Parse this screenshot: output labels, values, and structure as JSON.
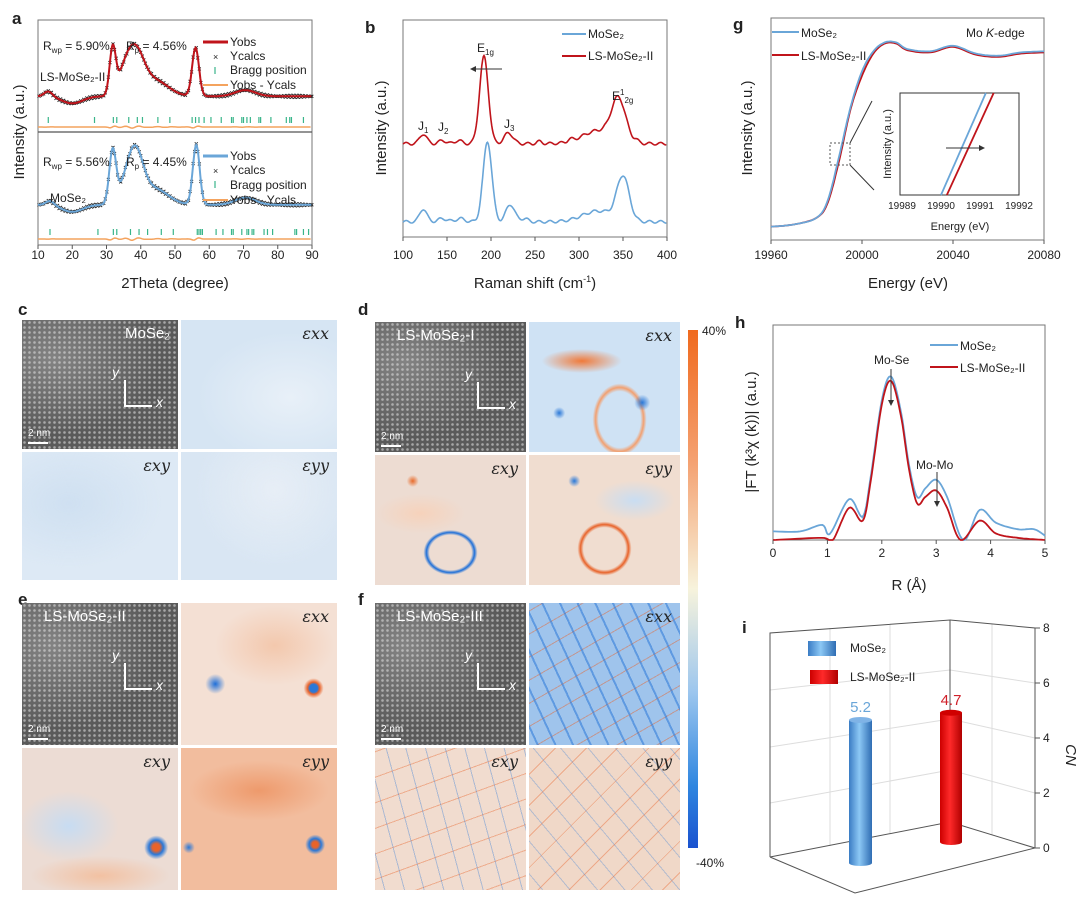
{
  "panel_labels": {
    "a": "a",
    "b": "b",
    "c": "c",
    "d": "d",
    "e": "e",
    "f": "f",
    "g": "g",
    "h": "h",
    "i": "i"
  },
  "colors": {
    "red": "#c0141b",
    "blue": "#6aa6d8",
    "orange": "#f4a35e",
    "bragg": "#39b58a",
    "bar_blue": "#4a90d9",
    "bar_red": "#e8151a"
  },
  "chart_data": [
    {
      "id": "a",
      "type": "line",
      "xlabel": "2Theta (degree)",
      "ylabel": "Intensity (a.u.)",
      "xlim": [
        10,
        90
      ],
      "xticks": [
        "10",
        "20",
        "30",
        "40",
        "50",
        "60",
        "70",
        "80",
        "90"
      ],
      "legend_items": {
        "yobs": "Yobs",
        "ycalcs": "Ycalcs",
        "bragg": "Bragg position",
        "diff": "Yobs - Ycals"
      },
      "subplots": [
        {
          "sample": "LS-MoSe₂-II",
          "rwp_label": "R",
          "rwp_sub": "wp",
          "rwp_value": " = 5.90%",
          "rp_label": "R",
          "rp_sub": "p",
          "rp_value": " = 4.56%",
          "color": "#c0141b",
          "baseline": 0.36,
          "peaks": [
            {
              "c": 13,
              "h": 0.06,
              "w": 1.2
            },
            {
              "c": 31.8,
              "h": 0.52,
              "w": 0.9
            },
            {
              "c": 35,
              "h": 0.18,
              "w": 2
            },
            {
              "c": 38.3,
              "h": 0.48,
              "w": 2.5
            },
            {
              "c": 44,
              "h": 0.18,
              "w": 4
            },
            {
              "c": 56,
              "h": 0.55,
              "w": 1
            },
            {
              "c": 70.5,
              "h": 0.07,
              "w": 3
            }
          ],
          "bragg_positions": [
            13,
            26.5,
            32,
            33,
            36.5,
            39,
            40.5,
            45,
            48.5,
            55,
            56,
            57,
            58.5,
            60.5,
            63.5,
            66.5,
            67,
            69.5,
            70,
            71,
            72,
            74.5,
            75,
            78,
            82.5,
            83.5,
            84,
            87.5
          ]
        },
        {
          "sample": "MoSe₂",
          "rwp_label": "R",
          "rwp_sub": "wp",
          "rwp_value": " = 5.56%",
          "rp_label": "R",
          "rp_sub": "p",
          "rp_value": " = 4.45%",
          "color": "#6aa6d8",
          "baseline": 0.4,
          "peaks": [
            {
              "c": 13.5,
              "h": 0.05,
              "w": 1.2
            },
            {
              "c": 31.8,
              "h": 0.6,
              "w": 1
            },
            {
              "c": 35,
              "h": 0.12,
              "w": 2
            },
            {
              "c": 38.3,
              "h": 0.58,
              "w": 2.3
            },
            {
              "c": 44,
              "h": 0.18,
              "w": 4
            },
            {
              "c": 56.2,
              "h": 0.68,
              "w": 1
            },
            {
              "c": 70.5,
              "h": 0.08,
              "w": 3
            }
          ],
          "bragg_positions": [
            13.5,
            27.5,
            32,
            33,
            37,
            39.5,
            42,
            46,
            49.5,
            56.5,
            57,
            57.5,
            58,
            62,
            64,
            66.5,
            67,
            69.5,
            71,
            71.5,
            72.5,
            73,
            76,
            77,
            78.5,
            85,
            85.5,
            87.5,
            89
          ]
        }
      ]
    },
    {
      "id": "b",
      "type": "line",
      "xlabel": "Raman shift (cm",
      "xlabel_sup": "-1",
      "xlabel_end": ")",
      "ylabel": "Intensity (a.u.)",
      "xlim": [
        100,
        400
      ],
      "ylim": [
        0,
        1
      ],
      "xticks": [
        "100",
        "150",
        "200",
        "250",
        "300",
        "350",
        "400"
      ],
      "annotations": {
        "j1": "J",
        "j1_sub": "1",
        "j2": "J",
        "j2_sub": "2",
        "j3": "J",
        "j3_sub": "3",
        "e1g": "E",
        "e1g_sub": "1g",
        "e2g": "E",
        "e2g_sup": "1",
        "e2g_sub": "2g"
      },
      "series": [
        {
          "name": "MoSe₂",
          "color": "#6aa6d8",
          "baseline": 0.07,
          "peaks": [
            {
              "c": 123,
              "h": 0.06,
              "w": 4
            },
            {
              "c": 145,
              "h": 0.015,
              "w": 5
            },
            {
              "c": 165,
              "h": 0.015,
              "w": 5
            },
            {
              "c": 196,
              "h": 0.37,
              "w": 5
            },
            {
              "c": 222,
              "h": 0.08,
              "w": 5
            },
            {
              "c": 238,
              "h": 0.015,
              "w": 4
            },
            {
              "c": 322,
              "h": 0.05,
              "w": 18
            },
            {
              "c": 350,
              "h": 0.2,
              "w": 7
            }
          ]
        },
        {
          "name": "LS-MoSe₂-II",
          "color": "#c0141b",
          "baseline": 0.43,
          "peaks": [
            {
              "c": 123,
              "h": 0.045,
              "w": 4
            },
            {
              "c": 145,
              "h": 0.015,
              "w": 4
            },
            {
              "c": 163,
              "h": 0.015,
              "w": 4
            },
            {
              "c": 192,
              "h": 0.4,
              "w": 5
            },
            {
              "c": 220,
              "h": 0.05,
              "w": 5
            },
            {
              "c": 255,
              "h": 0.01,
              "w": 3
            },
            {
              "c": 290,
              "h": 0.01,
              "w": 3
            },
            {
              "c": 322,
              "h": 0.06,
              "w": 18
            },
            {
              "c": 345,
              "h": 0.19,
              "w": 8
            },
            {
              "c": 365,
              "h": 0.01,
              "w": 3
            }
          ]
        }
      ]
    },
    {
      "id": "g",
      "type": "line",
      "xlabel": "Energy (eV)",
      "ylabel": "Intensity (a.u.)",
      "xlim": [
        19960,
        20080
      ],
      "ylim": [
        0,
        1
      ],
      "xticks": [
        "19960",
        "20000",
        "20040",
        "20080"
      ],
      "title_pre": "Mo ",
      "title_italic": "K",
      "title_post": "-edge",
      "series": [
        {
          "name": "MoSe₂",
          "color": "#6aa6d8",
          "points": [
            [
              19960,
              0.06
            ],
            [
              19970,
              0.07
            ],
            [
              19980,
              0.1
            ],
            [
              19985,
              0.18
            ],
            [
              19990,
              0.38
            ],
            [
              19995,
              0.6
            ],
            [
              20000,
              0.76
            ],
            [
              20005,
              0.85
            ],
            [
              20010,
              0.89
            ],
            [
              20015,
              0.89
            ],
            [
              20020,
              0.86
            ],
            [
              20030,
              0.85
            ],
            [
              20040,
              0.875
            ],
            [
              20050,
              0.84
            ],
            [
              20060,
              0.83
            ],
            [
              20070,
              0.845
            ],
            [
              20080,
              0.85
            ]
          ]
        },
        {
          "name": "LS-MoSe₂-II",
          "color": "#c0141b",
          "points": [
            [
              19960,
              0.06
            ],
            [
              19970,
              0.07
            ],
            [
              19980,
              0.1
            ],
            [
              19985,
              0.17
            ],
            [
              19990,
              0.36
            ],
            [
              19995,
              0.59
            ],
            [
              20000,
              0.74
            ],
            [
              20005,
              0.84
            ],
            [
              20010,
              0.885
            ],
            [
              20015,
              0.885
            ],
            [
              20020,
              0.855
            ],
            [
              20030,
              0.845
            ],
            [
              20040,
              0.87
            ],
            [
              20050,
              0.835
            ],
            [
              20060,
              0.825
            ],
            [
              20070,
              0.84
            ],
            [
              20080,
              0.845
            ]
          ]
        }
      ],
      "inset": {
        "xlabel": "Energy  (eV)",
        "ylabel": "Intensity (a.u.)",
        "xlim": [
          19989,
          19992
        ],
        "xticks": [
          "19989",
          "19990",
          "19991",
          "19992"
        ],
        "series": [
          {
            "name": "MoSe₂",
            "x_start": 19990.0,
            "x_end": 19991.15
          },
          {
            "name": "LS-MoSe₂-II",
            "x_start": 19990.15,
            "x_end": 19991.35
          }
        ]
      }
    },
    {
      "id": "h",
      "type": "line",
      "xlabel": "R (Å)",
      "ylabel": "|FT (k³χ (k))| (a.u.)",
      "xlim": [
        0,
        5
      ],
      "ylim": [
        0,
        1
      ],
      "xticks": [
        "0",
        "1",
        "2",
        "3",
        "4",
        "5"
      ],
      "annotations": {
        "mo_se": "Mo-Se",
        "mo_mo": "Mo-Mo"
      },
      "series": [
        {
          "name": "MoSe₂",
          "color": "#6aa6d8",
          "points": [
            [
              0,
              0.04
            ],
            [
              0.5,
              0.04
            ],
            [
              0.9,
              0.07
            ],
            [
              1.05,
              0.03
            ],
            [
              1.4,
              0.19
            ],
            [
              1.65,
              0.11
            ],
            [
              1.8,
              0.3
            ],
            [
              2.0,
              0.65
            ],
            [
              2.17,
              0.76
            ],
            [
              2.35,
              0.6
            ],
            [
              2.5,
              0.35
            ],
            [
              2.65,
              0.2
            ],
            [
              2.8,
              0.24
            ],
            [
              3.0,
              0.28
            ],
            [
              3.2,
              0.2
            ],
            [
              3.5,
              0.0
            ],
            [
              3.8,
              0.14
            ],
            [
              4.1,
              0.08
            ],
            [
              4.5,
              0.05
            ],
            [
              4.8,
              0.05
            ],
            [
              5,
              0.02
            ]
          ]
        },
        {
          "name": "LS-MoSe₂-II",
          "color": "#c0141b",
          "points": [
            [
              0,
              0.0
            ],
            [
              0.9,
              0.01
            ],
            [
              1.1,
              0.0
            ],
            [
              1.4,
              0.15
            ],
            [
              1.65,
              0.09
            ],
            [
              1.8,
              0.28
            ],
            [
              2.0,
              0.63
            ],
            [
              2.17,
              0.74
            ],
            [
              2.35,
              0.58
            ],
            [
              2.5,
              0.33
            ],
            [
              2.65,
              0.17
            ],
            [
              2.8,
              0.2
            ],
            [
              3.0,
              0.23
            ],
            [
              3.2,
              0.15
            ],
            [
              3.45,
              0.0
            ],
            [
              3.8,
              0.09
            ],
            [
              4.1,
              0.03
            ],
            [
              4.5,
              0.01
            ],
            [
              5,
              0.0
            ]
          ]
        }
      ]
    },
    {
      "id": "i",
      "type": "bar",
      "categories": [
        "MoSe₂",
        "LS-MoSe₂-II"
      ],
      "values": [
        5.2,
        4.7
      ],
      "value_labels": [
        "5.2",
        "4.7"
      ],
      "ylabel": "CN",
      "ylim": [
        0,
        8
      ],
      "yticks": [
        "0",
        "2",
        "4",
        "6",
        "8"
      ]
    }
  ],
  "strain_maps": {
    "scale_label": "2 nm",
    "axis_x": "x",
    "axis_y": "y",
    "eps_xx": "εxx",
    "eps_xy": "εxy",
    "eps_yy": "εyy",
    "panels": {
      "c": "MoSe₂",
      "d": "LS-MoSe₂-I",
      "e": "LS-MoSe₂-II",
      "f": "LS-MoSe₂-III"
    },
    "colorbar": {
      "max": "40%",
      "min": "-40%"
    }
  }
}
